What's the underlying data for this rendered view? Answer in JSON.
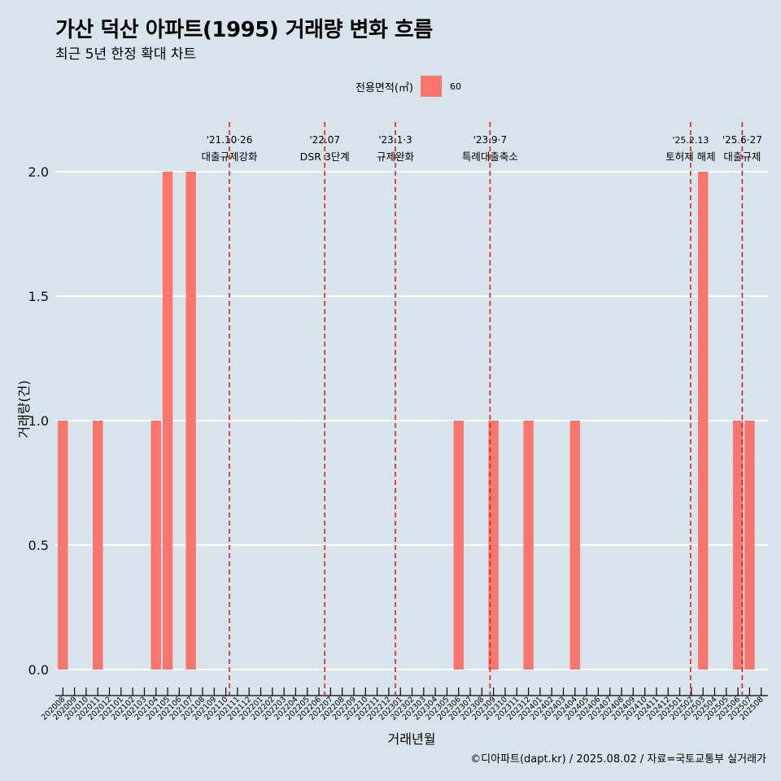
{
  "title": "가산 덕산 아파트(1995) 거래량 변화 흐름",
  "subtitle": "최근 5년 한정 확대 차트",
  "legend": {
    "title": "전용면적(㎡)",
    "items": [
      {
        "label": "60",
        "color": "#f8766d"
      }
    ]
  },
  "caption": "©디아파트(dapt.kr) / 2025.08.02 / 자료=국토교통부 실거래가",
  "colors": {
    "background": "#d7e4eb",
    "bar": "#f8766d",
    "grid": "#ffffff",
    "event_line": "#e41a1c"
  },
  "chart_data": {
    "type": "bar",
    "xlabel": "거래년월",
    "ylabel": "거래량(건)",
    "ylim": [
      0,
      2
    ],
    "y_ticks": [
      "0.0",
      "0.5",
      "1.0",
      "1.5",
      "2.0"
    ],
    "grid": true,
    "legend_position": "top",
    "categories": [
      "202008",
      "202009",
      "202010",
      "202011",
      "202012",
      "202101",
      "202102",
      "202103",
      "202104",
      "202105",
      "202106",
      "202107",
      "202108",
      "202109",
      "202110",
      "202111",
      "202112",
      "202201",
      "202202",
      "202203",
      "202204",
      "202205",
      "202206",
      "202207",
      "202208",
      "202209",
      "202210",
      "202211",
      "202212",
      "202301",
      "202302",
      "202303",
      "202304",
      "202305",
      "202306",
      "202307",
      "202308",
      "202309",
      "202310",
      "202311",
      "202312",
      "202401",
      "202402",
      "202403",
      "202404",
      "202405",
      "202406",
      "202407",
      "202408",
      "202409",
      "202410",
      "202411",
      "202412",
      "202501",
      "202502",
      "202503",
      "202504",
      "202505",
      "202506",
      "202507",
      "202508"
    ],
    "series": [
      {
        "name": "60",
        "values": [
          1,
          0,
          0,
          1,
          0,
          0,
          0,
          0,
          1,
          2,
          0,
          2,
          0,
          0,
          0,
          0,
          0,
          0,
          0,
          0,
          0,
          0,
          0,
          0,
          0,
          0,
          0,
          0,
          0,
          0,
          0,
          0,
          0,
          0,
          1,
          0,
          0,
          1,
          0,
          0,
          1,
          0,
          0,
          0,
          1,
          0,
          0,
          0,
          0,
          0,
          0,
          0,
          0,
          0,
          0,
          2,
          0,
          0,
          1,
          1,
          0
        ]
      }
    ],
    "annotations": [
      {
        "date": "2021-10-26",
        "line1": "'21.10·26",
        "line2": "대출규제강화"
      },
      {
        "date": "2022-07-01",
        "line1": "'22.07",
        "line2": "DSR 3단계"
      },
      {
        "date": "2023-01-03",
        "line1": "'23.1·3",
        "line2": "규제완화"
      },
      {
        "date": "2023-09-07",
        "line1": "'23.9·7",
        "line2": "특례대출축소"
      },
      {
        "date": "2025-02-13",
        "line1": "'25.2.13",
        "line2": "토허제 해제"
      },
      {
        "date": "2025-06-27",
        "line1": "'25.6·27",
        "line2": "대출규제"
      }
    ]
  }
}
